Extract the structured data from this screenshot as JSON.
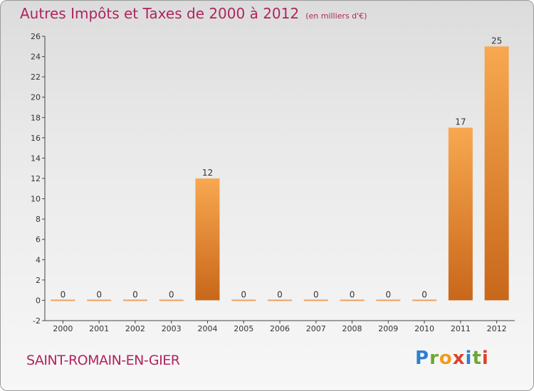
{
  "title": "Autres Impôts et Taxes de 2000 à 2012",
  "unit_note": "(en milliers d'€)",
  "commune": "SAINT-ROMAIN-EN-GIER",
  "logo": {
    "text": "Proxiti",
    "letters": [
      "P",
      "r",
      "o",
      "x",
      "i",
      "t",
      "i"
    ],
    "colors": [
      "#2d7fcf",
      "#6aa832",
      "#f39a1b",
      "#e0402a",
      "#2d7fcf",
      "#6aa832",
      "#e0402a"
    ]
  },
  "colors": {
    "bar_light": "#f8a850",
    "bar_dark": "#c8671a",
    "title": "#b0245f",
    "zero_bar": "#f0a060"
  },
  "chart_data": {
    "type": "bar",
    "title": "Autres Impôts et Taxes de 2000 à 2012",
    "ylabel": "",
    "xlabel": "",
    "categories": [
      "2000",
      "2001",
      "2002",
      "2003",
      "2004",
      "2005",
      "2006",
      "2007",
      "2008",
      "2009",
      "2010",
      "2011",
      "2012"
    ],
    "values": [
      0,
      0,
      0,
      0,
      12,
      0,
      0,
      0,
      0,
      0,
      0,
      17,
      25
    ],
    "ylim": [
      -2,
      26
    ],
    "yticks": [
      -2,
      0,
      2,
      4,
      6,
      8,
      10,
      12,
      14,
      16,
      18,
      20,
      22,
      24,
      26
    ],
    "grid": false,
    "data_labels": true
  }
}
